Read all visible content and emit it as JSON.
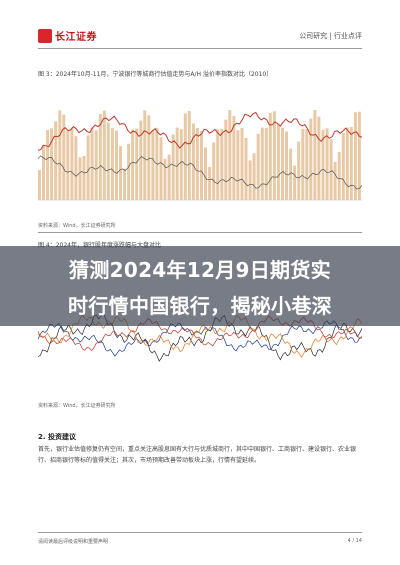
{
  "header": {
    "logo_text": "长江证券",
    "right_text": "公司研究 | 行业点评"
  },
  "figure1": {
    "caption": "图 3：2024年10月-11月，宁波银行等城商行估值走势与A/H 溢价率指数对比（2010）"
  },
  "figure2": {
    "caption": "图 4：2024年，银行股年度涨跌幅与大盘对比"
  },
  "source": "资料来源：Wind，长江证券研究所",
  "banner": {
    "line1": "猜测2024年12月9日期货实",
    "line2": "时行情中国银行，揭秘小巷深"
  },
  "section": {
    "heading": "2. 投资建议",
    "paragraph": "首先，银行业估值修复仍有空间，重点关注高股息国有大行与优质城商行，其中中国银行、工商银行、建设银行、农业银行、招商银行等标的值得关注；其次，市场预期改善带动板块上涨，行情有望延续。"
  },
  "footer": {
    "left": "请阅读最后评级说明和重要声明",
    "right": "4 / 14"
  },
  "colors": {
    "brand_red": "#d9252c",
    "line_red": "#c0392b",
    "bar_beige": "#e8c9a6",
    "line_dark": "#2b2b2b",
    "line_blue": "#1f3a8a",
    "line_orange": "#e07b24"
  }
}
